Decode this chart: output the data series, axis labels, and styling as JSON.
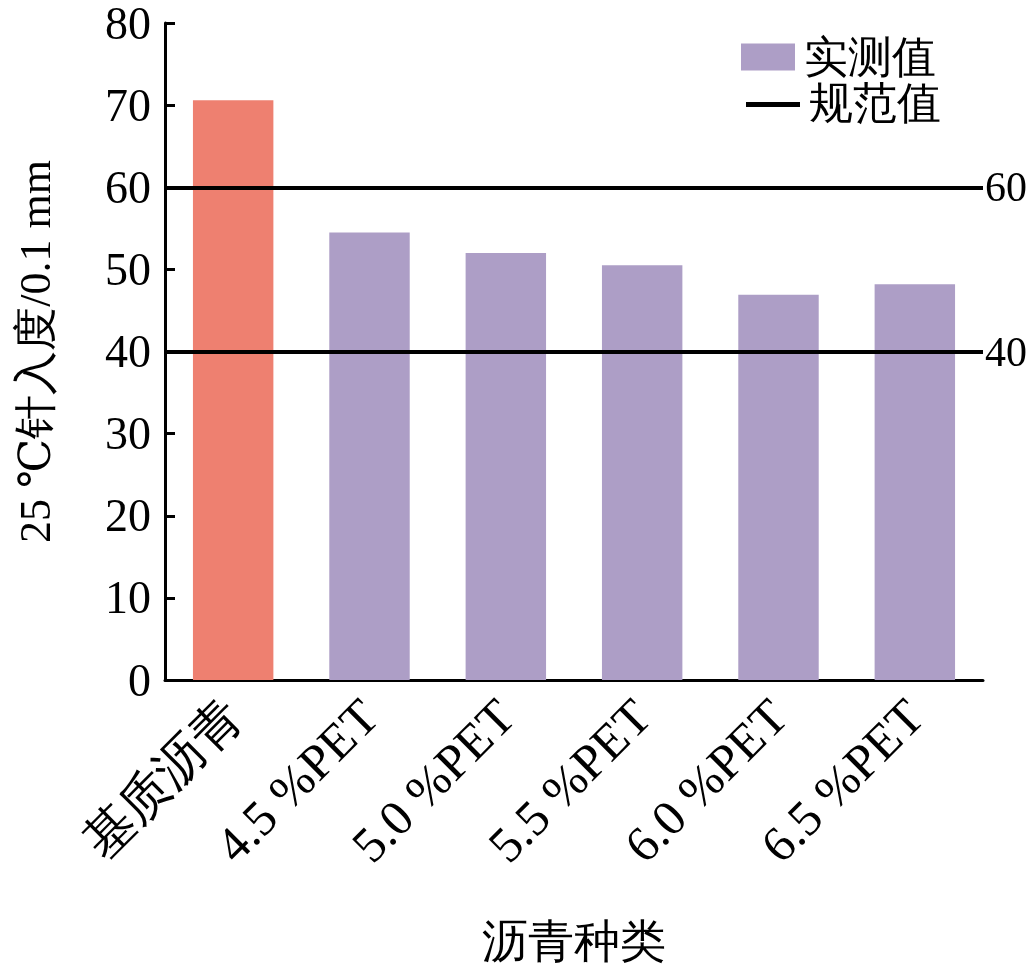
{
  "chart_data": {
    "type": "bar",
    "xlabel": "沥青种类",
    "ylabel": "25 ℃针入度/0.1 mm",
    "categories": [
      "基质沥青",
      "4.5 %PET",
      "5.0 %PET",
      "5.5 %PET",
      "6.0 %PET",
      "6.5 %PET"
    ],
    "series": [
      {
        "name": "实测值",
        "color": "#ad9ec6",
        "colors": [
          "#ee8070",
          "#ad9ec6",
          "#ad9ec6",
          "#ad9ec6",
          "#ad9ec6",
          "#ad9ec6"
        ],
        "values": [
          70.6,
          54.5,
          52.0,
          50.5,
          46.9,
          48.2
        ]
      }
    ],
    "ylim": [
      0,
      80
    ],
    "yticks": [
      0,
      10,
      20,
      30,
      40,
      50,
      60,
      70,
      80
    ],
    "ref_lines": [
      {
        "axis": "y",
        "value": 60,
        "label": "60",
        "color": "#000000",
        "line_style": "solid"
      },
      {
        "axis": "y",
        "value": 40,
        "label": "40",
        "color": "#000000",
        "line_style": "solid"
      }
    ],
    "annotations": [
      "规范值"
    ],
    "legend": "top right"
  }
}
